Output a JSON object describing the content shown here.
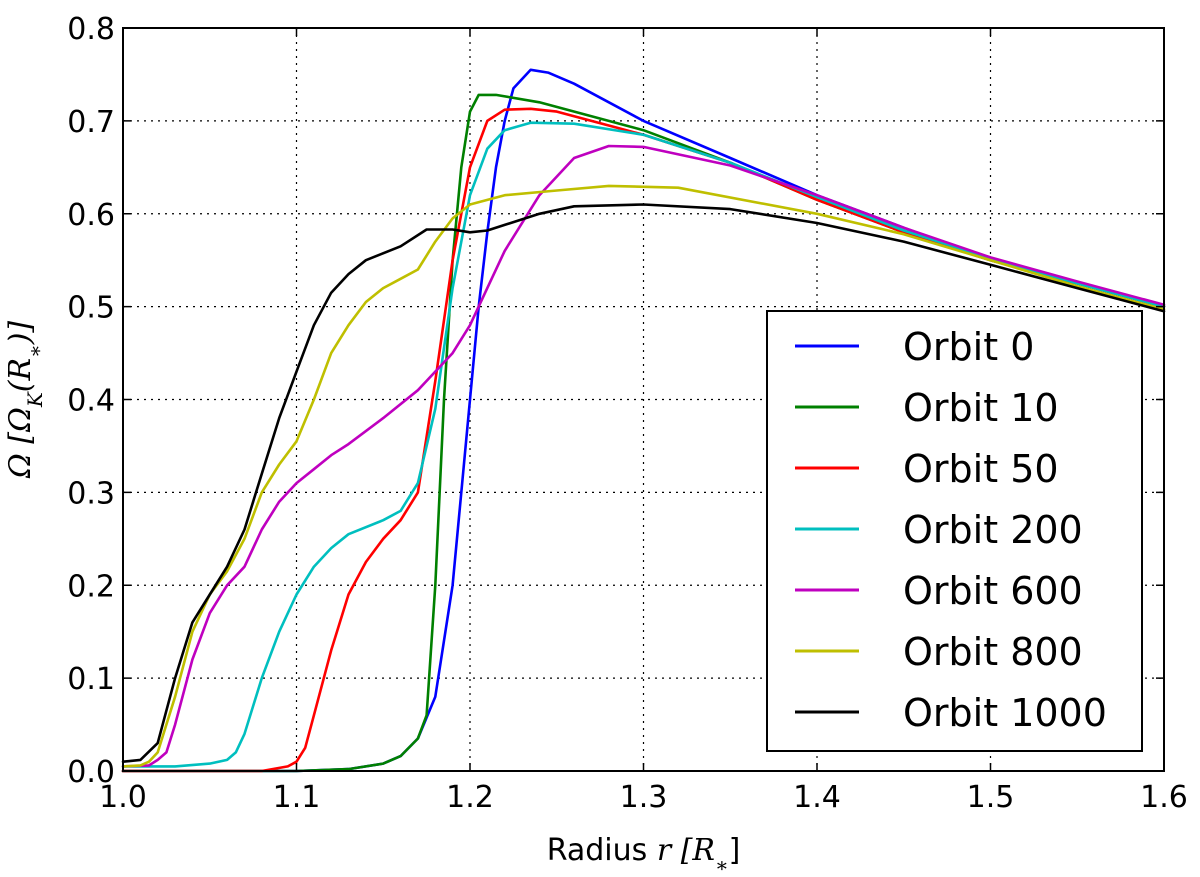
{
  "chart_data": {
    "type": "line",
    "xlabel": "Radius r [R*]",
    "ylabel": "Ω [ΩK(R*)]",
    "xlabel_text": "Radius ",
    "xlabel_math": "r [R",
    "xlabel_sub": "∗",
    "xlabel_close": "]",
    "ylabel_text": "Ω [Ω",
    "ylabel_sub": "K",
    "ylabel_rest": "(R",
    "ylabel_sub2": "∗",
    "ylabel_close": ")]",
    "xlim": [
      1.0,
      1.6
    ],
    "ylim": [
      0.0,
      0.8
    ],
    "xticks": [
      1.0,
      1.1,
      1.2,
      1.3,
      1.4,
      1.5,
      1.6
    ],
    "xtick_labels": [
      "1.0",
      "1.1",
      "1.2",
      "1.3",
      "1.4",
      "1.5",
      "1.6"
    ],
    "yticks": [
      0.0,
      0.1,
      0.2,
      0.3,
      0.4,
      0.5,
      0.6,
      0.7,
      0.8
    ],
    "ytick_labels": [
      "0.0",
      "0.1",
      "0.2",
      "0.3",
      "0.4",
      "0.5",
      "0.6",
      "0.7",
      "0.8"
    ],
    "grid": true,
    "legend_position": "lower-right",
    "series": [
      {
        "name": "Orbit 0",
        "color": "#0000ff",
        "points": [
          [
            1.0,
            0.0
          ],
          [
            1.1,
            0.0
          ],
          [
            1.13,
            0.002
          ],
          [
            1.15,
            0.008
          ],
          [
            1.16,
            0.016
          ],
          [
            1.17,
            0.035
          ],
          [
            1.18,
            0.08
          ],
          [
            1.19,
            0.2
          ],
          [
            1.2,
            0.4
          ],
          [
            1.205,
            0.5
          ],
          [
            1.21,
            0.58
          ],
          [
            1.215,
            0.65
          ],
          [
            1.22,
            0.7
          ],
          [
            1.225,
            0.735
          ],
          [
            1.235,
            0.755
          ],
          [
            1.245,
            0.752
          ],
          [
            1.26,
            0.74
          ],
          [
            1.3,
            0.7
          ],
          [
            1.35,
            0.66
          ],
          [
            1.4,
            0.62
          ],
          [
            1.45,
            0.585
          ],
          [
            1.5,
            0.55
          ],
          [
            1.55,
            0.525
          ],
          [
            1.6,
            0.5
          ]
        ]
      },
      {
        "name": "Orbit 10",
        "color": "#008000",
        "points": [
          [
            1.0,
            0.0
          ],
          [
            1.1,
            0.0
          ],
          [
            1.13,
            0.002
          ],
          [
            1.15,
            0.008
          ],
          [
            1.16,
            0.016
          ],
          [
            1.17,
            0.035
          ],
          [
            1.175,
            0.06
          ],
          [
            1.18,
            0.2
          ],
          [
            1.185,
            0.4
          ],
          [
            1.19,
            0.55
          ],
          [
            1.195,
            0.65
          ],
          [
            1.2,
            0.71
          ],
          [
            1.205,
            0.728
          ],
          [
            1.215,
            0.728
          ],
          [
            1.24,
            0.72
          ],
          [
            1.3,
            0.69
          ],
          [
            1.35,
            0.655
          ],
          [
            1.4,
            0.615
          ],
          [
            1.45,
            0.58
          ],
          [
            1.5,
            0.55
          ],
          [
            1.55,
            0.525
          ],
          [
            1.6,
            0.5
          ]
        ]
      },
      {
        "name": "Orbit 50",
        "color": "#ff0000",
        "points": [
          [
            1.0,
            0.0
          ],
          [
            1.08,
            0.0
          ],
          [
            1.095,
            0.005
          ],
          [
            1.1,
            0.01
          ],
          [
            1.105,
            0.025
          ],
          [
            1.11,
            0.06
          ],
          [
            1.12,
            0.13
          ],
          [
            1.13,
            0.19
          ],
          [
            1.14,
            0.225
          ],
          [
            1.15,
            0.25
          ],
          [
            1.16,
            0.27
          ],
          [
            1.17,
            0.3
          ],
          [
            1.175,
            0.36
          ],
          [
            1.18,
            0.42
          ],
          [
            1.19,
            0.55
          ],
          [
            1.2,
            0.65
          ],
          [
            1.21,
            0.7
          ],
          [
            1.22,
            0.712
          ],
          [
            1.235,
            0.713
          ],
          [
            1.25,
            0.71
          ],
          [
            1.3,
            0.685
          ],
          [
            1.35,
            0.655
          ],
          [
            1.4,
            0.615
          ],
          [
            1.45,
            0.58
          ],
          [
            1.5,
            0.55
          ],
          [
            1.55,
            0.525
          ],
          [
            1.6,
            0.5
          ]
        ]
      },
      {
        "name": "Orbit 200",
        "color": "#00bfbf",
        "points": [
          [
            1.0,
            0.005
          ],
          [
            1.03,
            0.005
          ],
          [
            1.05,
            0.008
          ],
          [
            1.06,
            0.012
          ],
          [
            1.065,
            0.02
          ],
          [
            1.07,
            0.04
          ],
          [
            1.08,
            0.1
          ],
          [
            1.09,
            0.15
          ],
          [
            1.1,
            0.19
          ],
          [
            1.11,
            0.22
          ],
          [
            1.12,
            0.24
          ],
          [
            1.13,
            0.255
          ],
          [
            1.15,
            0.27
          ],
          [
            1.16,
            0.28
          ],
          [
            1.17,
            0.31
          ],
          [
            1.18,
            0.39
          ],
          [
            1.19,
            0.52
          ],
          [
            1.2,
            0.62
          ],
          [
            1.21,
            0.67
          ],
          [
            1.22,
            0.69
          ],
          [
            1.235,
            0.698
          ],
          [
            1.26,
            0.697
          ],
          [
            1.3,
            0.685
          ],
          [
            1.35,
            0.655
          ],
          [
            1.4,
            0.618
          ],
          [
            1.45,
            0.582
          ],
          [
            1.5,
            0.552
          ],
          [
            1.55,
            0.525
          ],
          [
            1.6,
            0.5
          ]
        ]
      },
      {
        "name": "Orbit 600",
        "color": "#bf00bf",
        "points": [
          [
            1.0,
            0.005
          ],
          [
            1.015,
            0.006
          ],
          [
            1.02,
            0.012
          ],
          [
            1.025,
            0.02
          ],
          [
            1.03,
            0.05
          ],
          [
            1.04,
            0.12
          ],
          [
            1.05,
            0.17
          ],
          [
            1.06,
            0.2
          ],
          [
            1.07,
            0.22
          ],
          [
            1.08,
            0.26
          ],
          [
            1.09,
            0.29
          ],
          [
            1.1,
            0.31
          ],
          [
            1.11,
            0.325
          ],
          [
            1.12,
            0.34
          ],
          [
            1.13,
            0.352
          ],
          [
            1.15,
            0.38
          ],
          [
            1.17,
            0.41
          ],
          [
            1.19,
            0.45
          ],
          [
            1.2,
            0.48
          ],
          [
            1.21,
            0.52
          ],
          [
            1.22,
            0.56
          ],
          [
            1.24,
            0.62
          ],
          [
            1.26,
            0.66
          ],
          [
            1.28,
            0.673
          ],
          [
            1.3,
            0.672
          ],
          [
            1.35,
            0.652
          ],
          [
            1.4,
            0.62
          ],
          [
            1.45,
            0.585
          ],
          [
            1.5,
            0.553
          ],
          [
            1.55,
            0.527
          ],
          [
            1.6,
            0.502
          ]
        ]
      },
      {
        "name": "Orbit 800",
        "color": "#bfbf00",
        "points": [
          [
            1.0,
            0.005
          ],
          [
            1.01,
            0.006
          ],
          [
            1.015,
            0.01
          ],
          [
            1.02,
            0.02
          ],
          [
            1.03,
            0.08
          ],
          [
            1.04,
            0.15
          ],
          [
            1.05,
            0.19
          ],
          [
            1.06,
            0.215
          ],
          [
            1.07,
            0.25
          ],
          [
            1.08,
            0.3
          ],
          [
            1.09,
            0.33
          ],
          [
            1.1,
            0.355
          ],
          [
            1.11,
            0.4
          ],
          [
            1.12,
            0.45
          ],
          [
            1.13,
            0.48
          ],
          [
            1.14,
            0.505
          ],
          [
            1.15,
            0.52
          ],
          [
            1.16,
            0.53
          ],
          [
            1.17,
            0.54
          ],
          [
            1.18,
            0.57
          ],
          [
            1.19,
            0.595
          ],
          [
            1.2,
            0.61
          ],
          [
            1.22,
            0.62
          ],
          [
            1.25,
            0.625
          ],
          [
            1.28,
            0.63
          ],
          [
            1.32,
            0.628
          ],
          [
            1.4,
            0.6
          ],
          [
            1.45,
            0.578
          ],
          [
            1.5,
            0.55
          ],
          [
            1.55,
            0.522
          ],
          [
            1.6,
            0.497
          ]
        ]
      },
      {
        "name": "Orbit 1000",
        "color": "#000000",
        "points": [
          [
            1.0,
            0.01
          ],
          [
            1.01,
            0.012
          ],
          [
            1.02,
            0.03
          ],
          [
            1.03,
            0.1
          ],
          [
            1.04,
            0.16
          ],
          [
            1.05,
            0.19
          ],
          [
            1.06,
            0.22
          ],
          [
            1.07,
            0.26
          ],
          [
            1.08,
            0.32
          ],
          [
            1.09,
            0.38
          ],
          [
            1.1,
            0.43
          ],
          [
            1.11,
            0.48
          ],
          [
            1.12,
            0.515
          ],
          [
            1.13,
            0.535
          ],
          [
            1.14,
            0.55
          ],
          [
            1.16,
            0.565
          ],
          [
            1.175,
            0.583
          ],
          [
            1.19,
            0.583
          ],
          [
            1.2,
            0.58
          ],
          [
            1.21,
            0.582
          ],
          [
            1.22,
            0.588
          ],
          [
            1.24,
            0.6
          ],
          [
            1.26,
            0.608
          ],
          [
            1.3,
            0.61
          ],
          [
            1.35,
            0.605
          ],
          [
            1.4,
            0.59
          ],
          [
            1.45,
            0.57
          ],
          [
            1.5,
            0.545
          ],
          [
            1.55,
            0.52
          ],
          [
            1.6,
            0.495
          ]
        ]
      }
    ]
  }
}
